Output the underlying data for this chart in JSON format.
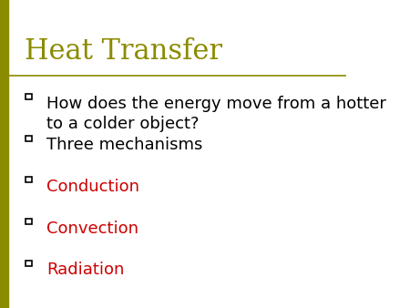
{
  "title": "Heat Transfer",
  "title_color": "#8B8B00",
  "title_fontsize": 22,
  "background_color": "#FFFFFF",
  "left_bar_color": "#8B8B00",
  "separator_color": "#8B8B00",
  "bullet_items": [
    {
      "text": "How does the energy move from a hotter\nto a colder object?",
      "color": "#000000"
    },
    {
      "text": "Three mechanisms",
      "color": "#000000"
    },
    {
      "text": "Conduction",
      "color": "#CC0000"
    },
    {
      "text": "Convection",
      "color": "#CC0000"
    },
    {
      "text": "Radiation",
      "color": "#CC0000"
    }
  ],
  "bullet_color": "#000000",
  "bullet_fontsize": 13,
  "left_bar_width": 0.025,
  "figsize": [
    4.5,
    3.38
  ],
  "dpi": 100
}
